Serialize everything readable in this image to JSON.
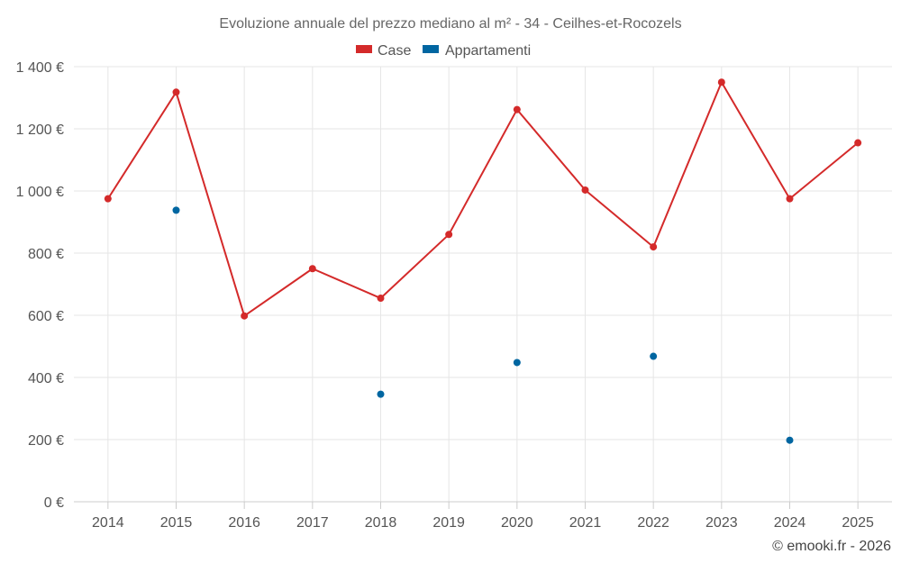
{
  "chart_data": {
    "type": "line",
    "title": "Evoluzione annuale del prezzo mediano al m² - 34 - Ceilhes-et-Rocozels",
    "categories": [
      "2014",
      "2015",
      "2016",
      "2017",
      "2018",
      "2019",
      "2020",
      "2021",
      "2022",
      "2023",
      "2024",
      "2025"
    ],
    "ylim": [
      0,
      1400
    ],
    "yticks": [
      0,
      200,
      400,
      600,
      800,
      1000,
      1200,
      1400
    ],
    "ytick_labels": [
      "0 €",
      "200 €",
      "400 €",
      "600 €",
      "800 €",
      "1 000 €",
      "1 200 €",
      "1 400 €"
    ],
    "legend_position": "top-center",
    "series": [
      {
        "name": "Case",
        "color": "#d42a2a",
        "values": [
          975,
          1318,
          598,
          750,
          655,
          860,
          1262,
          1003,
          820,
          1350,
          975,
          1155
        ]
      },
      {
        "name": "Appartamenti",
        "color": "#0066a1",
        "values": [
          null,
          938,
          null,
          null,
          346,
          null,
          448,
          null,
          468,
          null,
          198,
          null
        ]
      }
    ],
    "credit": "© emooki.fr - 2026"
  }
}
